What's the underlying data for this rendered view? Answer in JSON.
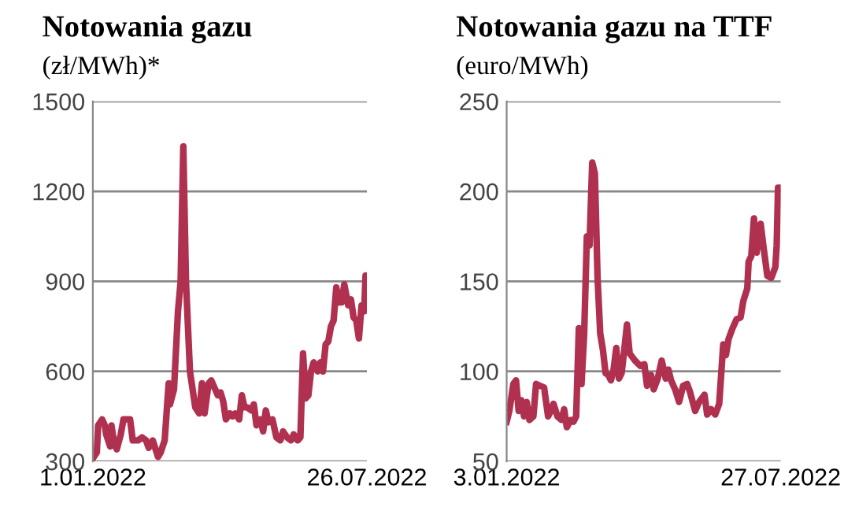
{
  "chart_data": [
    {
      "type": "line",
      "title": "Notowania gazu",
      "subtitle": "(zł/MWh)*",
      "x": [
        "2022-01-01",
        "2022-01-04",
        "2022-01-05",
        "2022-01-08",
        "2022-01-10",
        "2022-01-11",
        "2022-01-14",
        "2022-01-15",
        "2022-01-17",
        "2022-01-19",
        "2022-01-22",
        "2022-01-24",
        "2022-01-29",
        "2022-01-31",
        "2022-02-04",
        "2022-02-07",
        "2022-02-10",
        "2022-02-12",
        "2022-02-15",
        "2022-02-19",
        "2022-02-21",
        "2022-02-24",
        "2022-02-27",
        "2022-02-28",
        "2022-03-03",
        "2022-03-06",
        "2022-03-08",
        "2022-03-10",
        "2022-03-12",
        "2022-03-15",
        "2022-03-16",
        "2022-03-19",
        "2022-03-22",
        "2022-03-24",
        "2022-03-26",
        "2022-03-29",
        "2022-03-31",
        "2022-04-03",
        "2022-04-05",
        "2022-04-07",
        "2022-04-09",
        "2022-04-11",
        "2022-04-14",
        "2022-04-16",
        "2022-04-18",
        "2022-04-21",
        "2022-04-23",
        "2022-04-25",
        "2022-04-27",
        "2022-04-30",
        "2022-05-02",
        "2022-05-04",
        "2022-05-07",
        "2022-05-09",
        "2022-05-11",
        "2022-05-13",
        "2022-05-16",
        "2022-05-19",
        "2022-05-22",
        "2022-05-24",
        "2022-05-27",
        "2022-05-30",
        "2022-06-01",
        "2022-06-04",
        "2022-06-06",
        "2022-06-08",
        "2022-06-10",
        "2022-06-12",
        "2022-06-14",
        "2022-06-16",
        "2022-06-19",
        "2022-06-21",
        "2022-06-23",
        "2022-06-25",
        "2022-06-27",
        "2022-06-29",
        "2022-07-01",
        "2022-07-03",
        "2022-07-05",
        "2022-07-07",
        "2022-07-09",
        "2022-07-12",
        "2022-07-14",
        "2022-07-16",
        "2022-07-18",
        "2022-07-20",
        "2022-07-22",
        "2022-07-24",
        "2022-07-25",
        "2022-07-26"
      ],
      "series": [
        {
          "color": "#b03050",
          "values": [
            310,
            330,
            420,
            440,
            420,
            390,
            350,
            420,
            360,
            340,
            390,
            440,
            440,
            370,
            370,
            380,
            370,
            345,
            370,
            315,
            330,
            370,
            560,
            490,
            540,
            800,
            900,
            1350,
            900,
            600,
            570,
            480,
            460,
            560,
            460,
            560,
            570,
            540,
            520,
            530,
            500,
            440,
            460,
            450,
            460,
            440,
            520,
            480,
            480,
            470,
            490,
            420,
            440,
            400,
            470,
            430,
            440,
            380,
            370,
            400,
            380,
            370,
            390,
            370,
            380,
            660,
            510,
            520,
            600,
            630,
            600,
            630,
            600,
            690,
            700,
            750,
            770,
            880,
            830,
            830,
            890,
            820,
            840,
            780,
            770,
            710,
            820,
            800,
            920,
            915
          ]
        }
      ],
      "xlim": [
        "2022-01-01",
        "2022-07-26"
      ],
      "xticks": [
        {
          "value": "2022-01-01",
          "label": "1.01.2022"
        },
        {
          "value": "2022-07-26",
          "label": "26.07.2022"
        }
      ],
      "ylim": [
        300,
        1500
      ],
      "yticks": [
        300,
        600,
        900,
        1200,
        1500
      ],
      "grid": "y",
      "line_style": "solid",
      "marker": "none"
    },
    {
      "type": "line",
      "title": "Notowania gazu na TTF",
      "subtitle": "(euro/MWh)",
      "x": [
        "2022-01-03",
        "2022-01-05",
        "2022-01-08",
        "2022-01-10",
        "2022-01-12",
        "2022-01-14",
        "2022-01-16",
        "2022-01-18",
        "2022-01-20",
        "2022-01-23",
        "2022-01-25",
        "2022-01-28",
        "2022-01-31",
        "2022-02-03",
        "2022-02-05",
        "2022-02-07",
        "2022-02-10",
        "2022-02-13",
        "2022-02-15",
        "2022-02-17",
        "2022-02-20",
        "2022-02-22",
        "2022-02-24",
        "2022-02-26",
        "2022-02-28",
        "2022-03-02",
        "2022-03-04",
        "2022-03-06",
        "2022-03-08",
        "2022-03-10",
        "2022-03-12",
        "2022-03-14",
        "2022-03-16",
        "2022-03-18",
        "2022-03-20",
        "2022-03-22",
        "2022-03-24",
        "2022-03-26",
        "2022-03-28",
        "2022-03-30",
        "2022-04-01",
        "2022-04-03",
        "2022-04-05",
        "2022-04-09",
        "2022-04-13",
        "2022-04-16",
        "2022-04-18",
        "2022-04-21",
        "2022-04-23",
        "2022-04-26",
        "2022-04-29",
        "2022-05-02",
        "2022-05-04",
        "2022-05-06",
        "2022-05-09",
        "2022-05-12",
        "2022-05-15",
        "2022-05-18",
        "2022-05-20",
        "2022-05-24",
        "2022-05-27",
        "2022-05-31",
        "2022-06-02",
        "2022-06-05",
        "2022-06-08",
        "2022-06-11",
        "2022-06-14",
        "2022-06-16",
        "2022-06-18",
        "2022-06-21",
        "2022-06-24",
        "2022-06-27",
        "2022-06-29",
        "2022-07-02",
        "2022-07-03",
        "2022-07-05",
        "2022-07-07",
        "2022-07-09",
        "2022-07-12",
        "2022-07-14",
        "2022-07-17",
        "2022-07-20",
        "2022-07-23",
        "2022-07-24",
        "2022-07-25",
        "2022-07-27"
      ],
      "series": [
        {
          "color": "#b03050",
          "values": [
            72,
            78,
            93,
            95,
            78,
            84,
            75,
            83,
            73,
            75,
            93,
            92,
            91,
            75,
            78,
            82,
            75,
            73,
            79,
            69,
            73,
            72,
            75,
            124,
            93,
            121,
            175,
            170,
            216,
            210,
            152,
            121,
            112,
            99,
            98,
            95,
            101,
            113,
            96,
            99,
            112,
            126,
            110,
            106,
            103,
            104,
            92,
            98,
            90,
            96,
            106,
            96,
            101,
            95,
            90,
            83,
            92,
            93,
            89,
            78,
            83,
            87,
            76,
            79,
            76,
            82,
            115,
            109,
            118,
            124,
            129,
            130,
            139,
            146,
            161,
            164,
            185,
            166,
            182,
            170,
            153,
            152,
            158,
            170,
            202,
            202
          ]
        }
      ],
      "xlim": [
        "2022-01-03",
        "2022-07-27"
      ],
      "xticks": [
        {
          "value": "2022-01-03",
          "label": "3.01.2022"
        },
        {
          "value": "2022-07-27",
          "label": "27.07.2022"
        }
      ],
      "ylim": [
        50,
        250
      ],
      "yticks": [
        50,
        100,
        150,
        200,
        250
      ],
      "grid": "y",
      "line_style": "solid",
      "marker": "none"
    }
  ]
}
